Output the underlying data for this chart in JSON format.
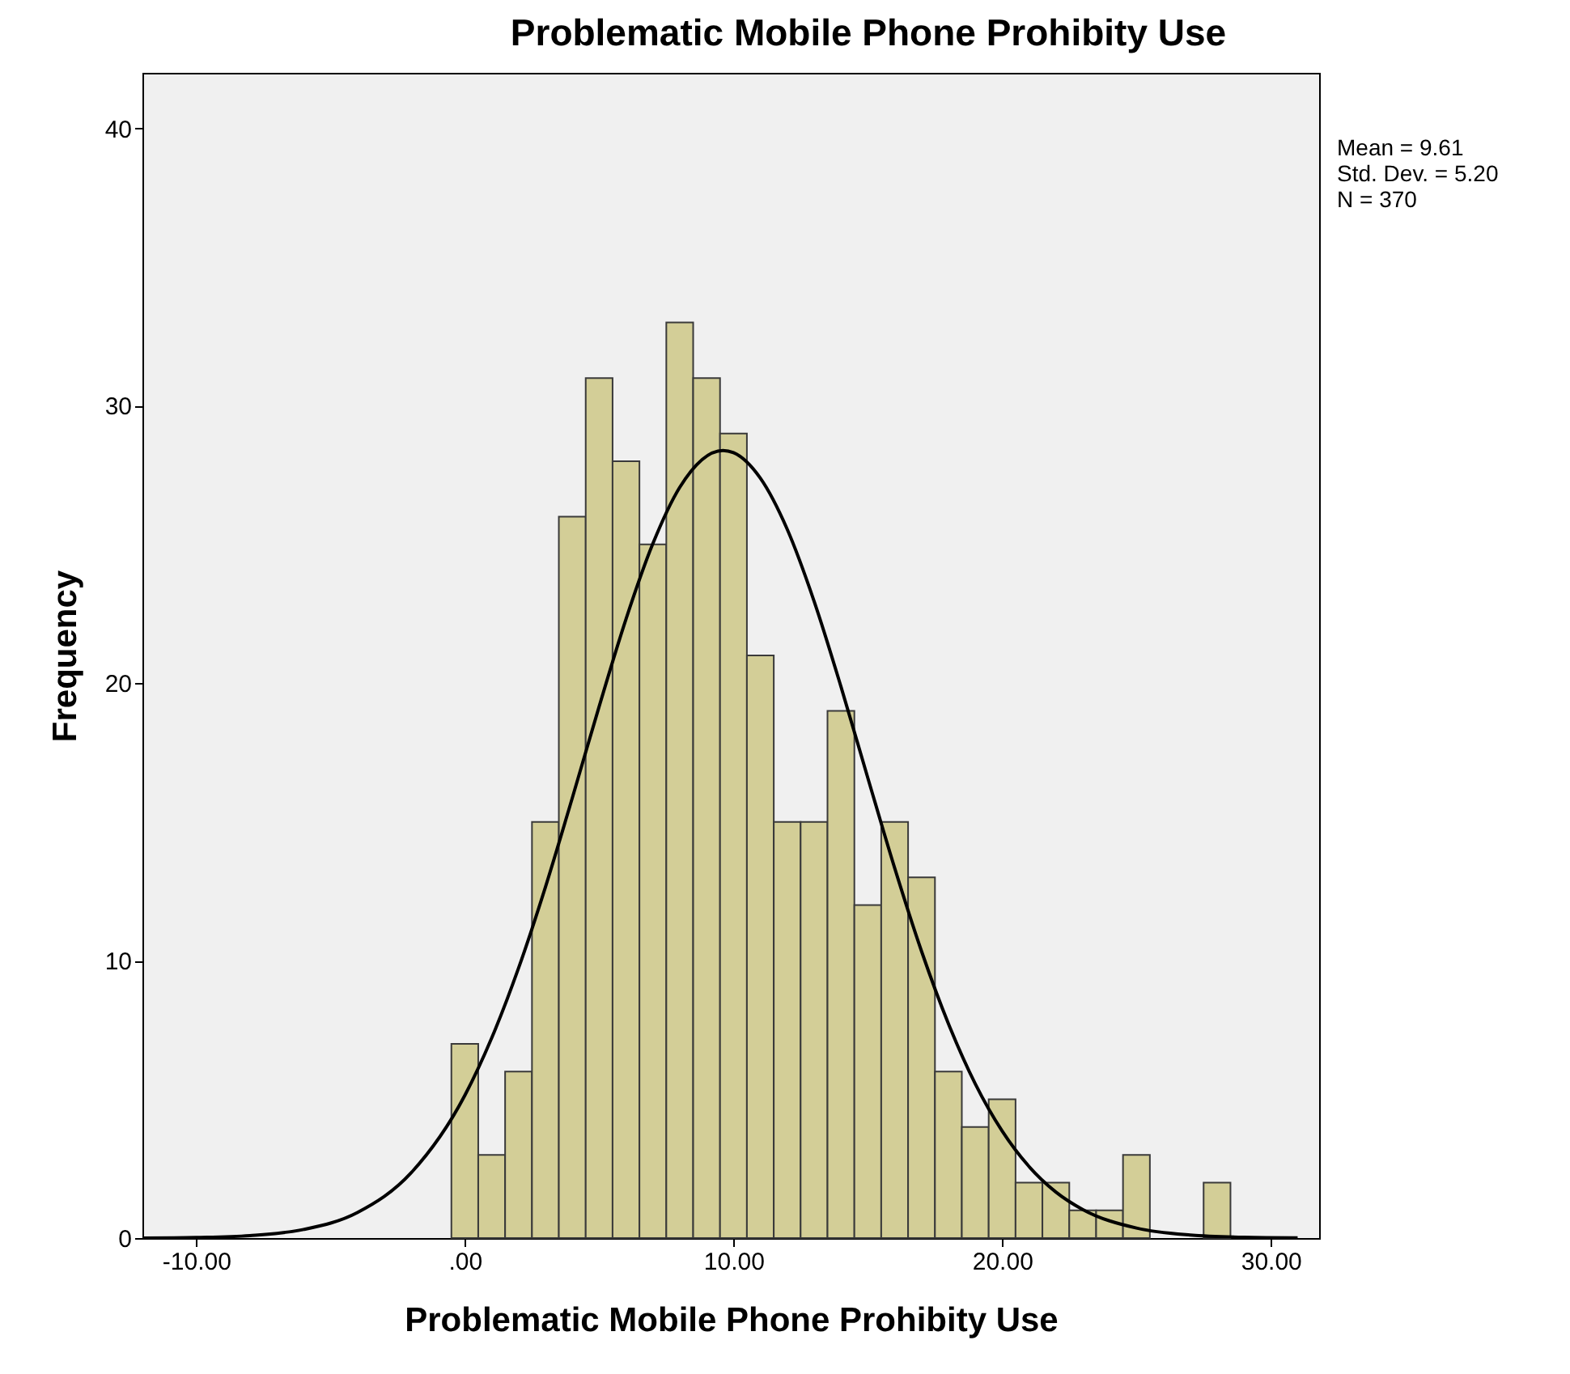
{
  "chart_data": {
    "type": "histogram",
    "title": "Problematic Mobile Phone Prohibity Use",
    "xlabel": "Problematic Mobile Phone Prohibity Use",
    "ylabel": "Frequency",
    "bins": [
      -0.5,
      0.5,
      1.5,
      2.5,
      3.5,
      4.5,
      5.5,
      6.5,
      7.5,
      8.5,
      9.5,
      10.5,
      11.5,
      12.5,
      13.5,
      14.5,
      15.5,
      16.5,
      17.5,
      18.5,
      19.5,
      20.5,
      21.5,
      22.5,
      23.5,
      24.5,
      25.5,
      26.5,
      27.5,
      28.5
    ],
    "values": [
      7,
      3,
      6,
      15,
      26,
      31,
      28,
      25,
      33,
      31,
      29,
      21,
      15,
      15,
      19,
      12,
      15,
      13,
      6,
      4,
      5,
      2,
      2,
      1,
      1,
      3,
      0,
      0,
      2
    ],
    "color": "#d3ce97",
    "series": [
      {
        "type": "line",
        "color": "#000000",
        "x": [
          -12,
          -10,
          -8,
          -6,
          -4,
          -2,
          0,
          1,
          2,
          3,
          4,
          5,
          6,
          7,
          8,
          9.61,
          10,
          11,
          12,
          13,
          14,
          15,
          16,
          17,
          18,
          19,
          20,
          21,
          22,
          23,
          25,
          27,
          29,
          31
        ],
        "values": [
          0.0,
          0.02,
          0.09,
          0.31,
          0.92,
          2.35,
          5.14,
          7.21,
          9.73,
          12.65,
          15.86,
          19.16,
          22.31,
          25.03,
          27.06,
          28.39,
          28.31,
          27.39,
          25.55,
          22.96,
          19.88,
          16.59,
          13.34,
          10.34,
          7.73,
          5.56,
          3.86,
          2.58,
          1.66,
          1.03,
          0.36,
          0.11,
          0.03,
          0.01
        ]
      }
    ],
    "xlim": [
      -12,
      31.8
    ],
    "ylim": [
      0,
      42
    ],
    "xticks": [
      {
        "value": -10,
        "label": "-10.00"
      },
      {
        "value": 0,
        "label": ".00"
      },
      {
        "value": 10,
        "label": "10.00"
      },
      {
        "value": 20,
        "label": "20.00"
      },
      {
        "value": 30,
        "label": "30.00"
      }
    ],
    "yticks": [
      0,
      10,
      20,
      30,
      40
    ],
    "grid": false,
    "annotations": [
      "Mean = 9.61",
      "Std. Dev. = 5.20",
      "N = 370"
    ]
  }
}
